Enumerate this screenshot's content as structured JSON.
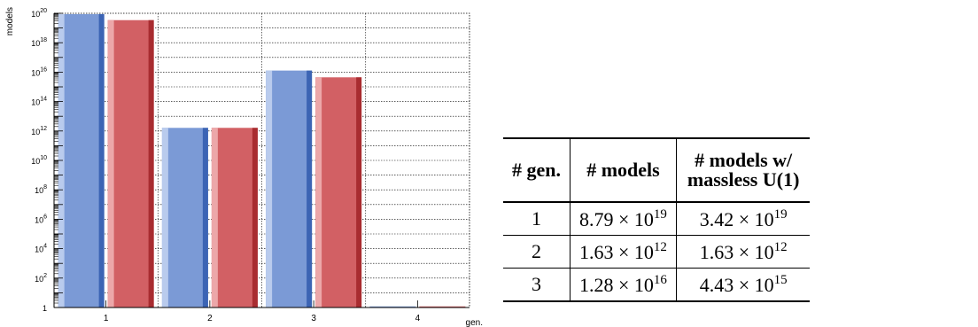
{
  "chart_data": {
    "type": "bar",
    "ylabel": "models",
    "xlabel": "gen.",
    "yscale": "log",
    "ylim": [
      1,
      1e+20
    ],
    "y_ticks": [
      {
        "value": 1,
        "base": "1",
        "exp": ""
      },
      {
        "value": 100,
        "base": "10",
        "exp": "2"
      },
      {
        "value": 10000,
        "base": "10",
        "exp": "4"
      },
      {
        "value": 1000000,
        "base": "10",
        "exp": "6"
      },
      {
        "value": 100000000,
        "base": "10",
        "exp": "8"
      },
      {
        "value": 10000000000,
        "base": "10",
        "exp": "10"
      },
      {
        "value": 1000000000000,
        "base": "10",
        "exp": "12"
      },
      {
        "value": 100000000000000,
        "base": "10",
        "exp": "14"
      },
      {
        "value": 10000000000000000,
        "base": "10",
        "exp": "16"
      },
      {
        "value": 1000000000000000000,
        "base": "10",
        "exp": "18"
      },
      {
        "value": 100000000000000000000,
        "base": "10",
        "exp": "20"
      }
    ],
    "categories": [
      "1",
      "2",
      "3",
      "4"
    ],
    "series": [
      {
        "values": [
          8.79e+19,
          1630000000000.0,
          1.28e+16,
          1
        ],
        "color": "#7b9ad6",
        "dark": "#3c64b4",
        "light": "#b9cbed"
      },
      {
        "values": [
          3.42e+19,
          1630000000000.0,
          4430000000000000.0,
          1
        ],
        "color": "#d26064",
        "dark": "#a82c30",
        "light": "#eca7a9"
      }
    ],
    "grid": true
  },
  "table": {
    "headers": [
      {
        "lines": [
          "# gen."
        ]
      },
      {
        "lines": [
          "# models"
        ]
      },
      {
        "lines": [
          "# models w/",
          "massless U(1)"
        ]
      }
    ],
    "rows": [
      {
        "gen": "1",
        "models": {
          "mantissa": "8.79",
          "times": "×",
          "base": "10",
          "exp": "19"
        },
        "massless": {
          "mantissa": "3.42",
          "times": "×",
          "base": "10",
          "exp": "19"
        }
      },
      {
        "gen": "2",
        "models": {
          "mantissa": "1.63",
          "times": "×",
          "base": "10",
          "exp": "12"
        },
        "massless": {
          "mantissa": "1.63",
          "times": "×",
          "base": "10",
          "exp": "12"
        }
      },
      {
        "gen": "3",
        "models": {
          "mantissa": "1.28",
          "times": "×",
          "base": "10",
          "exp": "16"
        },
        "massless": {
          "mantissa": "4.43",
          "times": "×",
          "base": "10",
          "exp": "15"
        }
      }
    ]
  }
}
